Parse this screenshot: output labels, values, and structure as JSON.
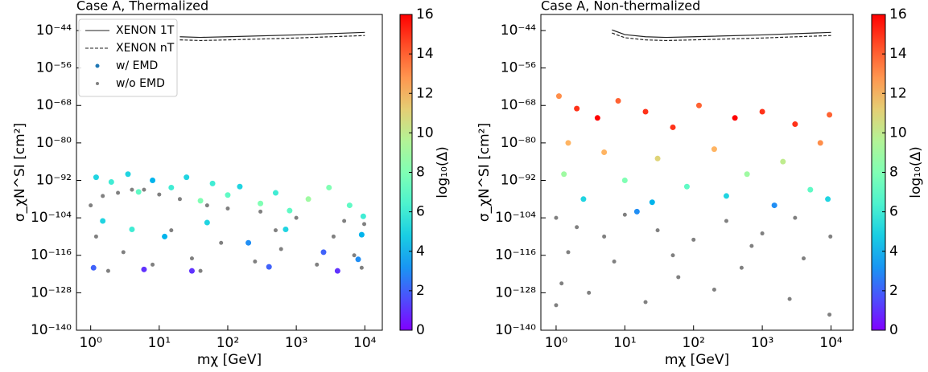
{
  "chart_data": [
    {
      "type": "scatter",
      "title": "Case A, Thermalized",
      "xlabel": "mχ [GeV]",
      "ylabel": "σ_χN^SI [cm²]",
      "xscale": "log",
      "yscale": "log",
      "xlim": [
        0.62,
        18000
      ],
      "ylim": [
        1.4e-39,
        1e-140
      ],
      "xticks": [
        {
          "value": 1,
          "label": "10⁰"
        },
        {
          "value": 10,
          "label": "10¹"
        },
        {
          "value": 100,
          "label": "10²"
        },
        {
          "value": 1000,
          "label": "10³"
        },
        {
          "value": 10000,
          "label": "10⁴"
        }
      ],
      "yticks": [
        {
          "value": 1e-44,
          "label": "10⁻⁴⁴"
        },
        {
          "value": 1e-56,
          "label": "10⁻⁵⁶"
        },
        {
          "value": 1e-68,
          "label": "10⁻⁶⁸"
        },
        {
          "value": 1e-80,
          "label": "10⁻⁸⁰"
        },
        {
          "value": 1e-92,
          "label": "10⁻⁹²"
        },
        {
          "value": 1e-104,
          "label": "10⁻¹⁰⁴"
        },
        {
          "value": 1e-116,
          "label": "10⁻¹¹⁶"
        },
        {
          "value": 1e-128,
          "label": "10⁻¹²⁸"
        },
        {
          "value": 1e-140,
          "label": "10⁻¹⁴⁰"
        }
      ],
      "legend": "upper left",
      "colorbar": {
        "label": "log₁₀(Δ)",
        "colormap": "rainbow",
        "clim": [
          0,
          16
        ],
        "ticks": [
          0,
          2,
          4,
          6,
          8,
          10,
          12,
          14,
          16
        ]
      },
      "series": [
        {
          "name": "XENON 1T",
          "kind": "line",
          "style": "solid",
          "color": "#222222",
          "x": [
            20,
            40,
            100,
            1000,
            10000
          ],
          "y": [
            1e-46,
            6.3e-47,
            1e-46,
            4e-46,
            2.5e-45
          ]
        },
        {
          "name": "XENON nT",
          "kind": "line",
          "style": "dashed",
          "color": "#222222",
          "x": [
            20,
            40,
            100,
            1000,
            10000
          ],
          "y": [
            1e-47,
            6.3e-48,
            1e-47,
            4e-47,
            2.5e-46
          ]
        },
        {
          "name": "w/ EMD",
          "kind": "points",
          "color": "#1f77b4",
          "x": [
            1.2,
            2,
            3.5,
            5,
            8,
            15,
            25,
            40,
            60,
            100,
            150,
            300,
            500,
            800,
            1500,
            3000,
            6000,
            9500,
            1.5,
            4,
            12,
            50,
            200,
            700,
            2500,
            9000,
            1.1,
            6,
            30,
            400,
            4000,
            8000
          ],
          "y": [
            1e-91,
            3e-93,
            1e-90,
            2e-96,
            1e-92,
            5e-95,
            1e-91,
            3e-99,
            1e-93,
            2e-97,
            1e-94,
            4e-100,
            1e-96,
            2e-102,
            1e-98,
            5e-95,
            1e-100,
            3e-104,
            1e-105,
            2e-108,
            1e-110,
            3e-106,
            1e-112,
            2e-108,
            1e-115,
            4e-110,
            1e-120,
            3e-121,
            1e-121,
            2e-120,
            1e-121,
            5e-118
          ],
          "c": [
            5,
            6,
            5,
            7,
            4,
            6,
            5,
            8,
            6,
            7,
            5,
            8,
            6,
            7,
            9,
            8,
            7,
            6,
            5,
            6,
            4,
            5,
            3,
            5,
            2,
            4,
            2,
            1,
            1,
            2,
            1,
            3
          ]
        },
        {
          "name": "w/o EMD",
          "kind": "points",
          "color": "#808080",
          "x": [
            1,
            1.5,
            2.5,
            4,
            6,
            10,
            20,
            50,
            100,
            300,
            1000,
            5000,
            9800,
            1.2,
            3,
            8,
            30,
            80,
            250,
            600,
            2000,
            7000,
            1.8,
            15,
            500,
            9000,
            40,
            3500
          ],
          "y": [
            1e-100,
            1e-97,
            1e-96,
            1e-95,
            1e-95,
            3e-97,
            1e-98,
            1e-100,
            1e-101,
            1e-102,
            1e-104,
            1e-105,
            1e-106,
            1e-110,
            1e-115,
            1e-119,
            1e-117,
            1e-112,
            1e-118,
            1e-114,
            1e-119,
            1e-116,
            1e-121,
            1e-108,
            1e-108,
            1e-120,
            1e-121,
            1e-110
          ]
        }
      ]
    },
    {
      "type": "scatter",
      "title": "Case A, Non-thermalized",
      "xlabel": "mχ [GeV]",
      "ylabel": "σ_χN^SI [cm²]",
      "xscale": "log",
      "yscale": "log",
      "xlim": [
        0.6,
        21000
      ],
      "ylim": [
        1.4e-39,
        1e-140
      ],
      "xticks": [
        {
          "value": 1,
          "label": "10⁰"
        },
        {
          "value": 10,
          "label": "10¹"
        },
        {
          "value": 100,
          "label": "10²"
        },
        {
          "value": 1000,
          "label": "10³"
        },
        {
          "value": 10000,
          "label": "10⁴"
        }
      ],
      "yticks": [
        {
          "value": 1e-44,
          "label": "10⁻⁴⁴"
        },
        {
          "value": 1e-56,
          "label": "10⁻⁵⁶"
        },
        {
          "value": 1e-68,
          "label": "10⁻⁶⁸"
        },
        {
          "value": 1e-80,
          "label": "10⁻⁸⁰"
        },
        {
          "value": 1e-92,
          "label": "10⁻⁹²"
        },
        {
          "value": 1e-104,
          "label": "10⁻¹⁰⁴"
        },
        {
          "value": 1e-116,
          "label": "10⁻¹¹⁶"
        },
        {
          "value": 1e-128,
          "label": "10⁻¹²⁸"
        },
        {
          "value": 1e-140,
          "label": "10⁻¹⁴⁰"
        }
      ],
      "colorbar": {
        "label": "log₁₀(Δ)",
        "colormap": "rainbow",
        "clim": [
          0,
          16
        ],
        "ticks": [
          0,
          2,
          4,
          6,
          8,
          10,
          12,
          14,
          16
        ]
      },
      "series": [
        {
          "kind": "line",
          "style": "solid",
          "color": "#222222",
          "x": [
            6.5,
            10,
            20,
            40,
            100,
            1000,
            10000
          ],
          "y": [
            1.6e-44,
            5e-46,
            1e-46,
            6.3e-47,
            1e-46,
            4e-46,
            2.5e-45
          ]
        },
        {
          "kind": "line",
          "style": "dashed",
          "color": "#222222",
          "x": [
            6.5,
            10,
            20,
            40,
            100,
            1000,
            10000
          ],
          "y": [
            1.6e-45,
            5e-47,
            1e-47,
            6.3e-48,
            1e-47,
            4e-47,
            2.5e-46
          ]
        },
        {
          "kind": "points",
          "color": "#1f77b4",
          "x": [
            1.1,
            2,
            4,
            8,
            20,
            50,
            120,
            400,
            1000,
            3000,
            9500,
            1.5,
            5,
            30,
            200,
            2000,
            7000,
            1.3,
            10,
            80,
            600,
            5000,
            2.5,
            25,
            300,
            1500,
            9000,
            15
          ],
          "y": [
            1e-65,
            1e-69,
            1e-72,
            3e-67,
            1e-70,
            1e-75,
            1e-68,
            1e-72,
            1e-70,
            1e-74,
            1e-71,
            1e-80,
            1e-83,
            1e-85,
            1e-82,
            1e-86,
            1e-80,
            1e-90,
            1e-92,
            1e-94,
            1e-90,
            1e-95,
            1e-98,
            1e-99,
            1e-97,
            1e-100,
            1e-98,
            1e-102
          ],
          "c": [
            13,
            15,
            16,
            14,
            15,
            15,
            14,
            16,
            15,
            15,
            14,
            12,
            12,
            11,
            12,
            10,
            13,
            9,
            8,
            7,
            9,
            7,
            5,
            4,
            5,
            3,
            5,
            3
          ]
        },
        {
          "kind": "points",
          "color": "#808080",
          "x": [
            1,
            2,
            5,
            10,
            30,
            100,
            300,
            1000,
            3000,
            9800,
            1.5,
            7,
            50,
            500,
            4000,
            1.2,
            3,
            20,
            200,
            2500,
            1,
            9500,
            60,
            700
          ],
          "y": [
            1e-104,
            1e-107,
            1e-110,
            1e-103,
            1e-108,
            1e-111,
            1e-105,
            1e-109,
            1e-104,
            1e-110,
            1e-115,
            1e-118,
            1e-116,
            1e-120,
            1e-117,
            1e-125,
            1e-128,
            1e-131,
            1e-127,
            1e-130,
            1e-132,
            1e-135,
            1e-123,
            1e-113
          ]
        }
      ]
    }
  ]
}
